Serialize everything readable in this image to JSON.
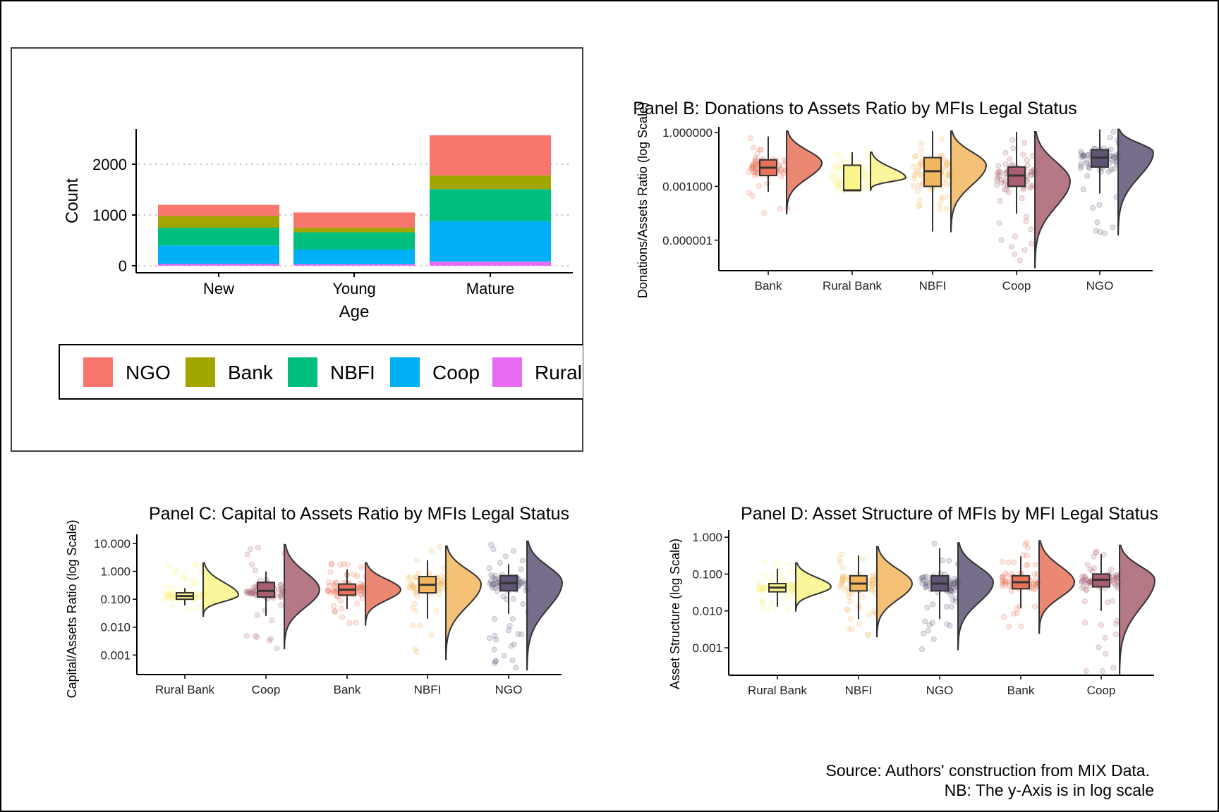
{
  "figure_notes": {
    "source": "Source: Authors' construction from MIX Data.",
    "nb": "NB: The y-Axis is in log scale"
  },
  "chart_data": [
    {
      "id": "A",
      "type": "bar",
      "stacked": true,
      "title": "",
      "xlabel": "Age",
      "ylabel": "Count",
      "categories": [
        "New",
        "Young",
        "Mature"
      ],
      "ylim": [
        0,
        2600
      ],
      "yticks": [
        0,
        1000,
        2000
      ],
      "grid": "horizontal dotted",
      "legend": "bottom",
      "series": [
        {
          "name": "Rural",
          "color": "#E76BF3",
          "values": [
            35,
            30,
            80
          ]
        },
        {
          "name": "Coop",
          "color": "#00B0F6",
          "values": [
            365,
            290,
            800
          ]
        },
        {
          "name": "NBFI",
          "color": "#00BF7D",
          "values": [
            350,
            340,
            630
          ]
        },
        {
          "name": "Bank",
          "color": "#A3A500",
          "values": [
            230,
            90,
            270
          ]
        },
        {
          "name": "NGO",
          "color": "#F8766D",
          "values": [
            220,
            300,
            790
          ]
        }
      ],
      "legend_order": [
        "NGO",
        "Bank",
        "NBFI",
        "Coop",
        "Rural"
      ]
    },
    {
      "id": "B",
      "type": "raincloud",
      "title": "Panel B: Donations to Assets Ratio by MFIs Legal Status",
      "xlabel": "",
      "ylabel": "Donations/Assets Ratio (log Scale)",
      "yscale": "log10",
      "ylim": [
        2e-08,
        1.2
      ],
      "yticks": [
        {
          "value": 1,
          "label": "1.000000"
        },
        {
          "value": 0.001,
          "label": "0.001000"
        },
        {
          "value": 1e-06,
          "label": "0.000001"
        }
      ],
      "groups": [
        {
          "name": "Bank",
          "color": "#E8735A",
          "q1": 0.004,
          "median": 0.011,
          "q3": 0.03,
          "wlo": 0.0005,
          "whi": 0.6,
          "vmin": 3e-05,
          "vmax": 1.2,
          "mode": 0.02,
          "ptlo": 3e-05,
          "pthi": 0.5
        },
        {
          "name": "Rural Bank",
          "color": "#FAF48B",
          "q1": 0.0006,
          "median": 0.0006,
          "q3": 0.015,
          "wlo": 0.0006,
          "whi": 0.08,
          "vmin": 0.0006,
          "vmax": 0.08,
          "mode": 0.003,
          "ptlo": 0.0006,
          "pthi": 0.08
        },
        {
          "name": "NBFI",
          "color": "#F2B65F",
          "q1": 0.001,
          "median": 0.007,
          "q3": 0.04,
          "wlo": 3e-06,
          "whi": 1.2,
          "vmin": 3e-06,
          "vmax": 1.2,
          "mode": 0.015,
          "ptlo": 5e-05,
          "pthi": 1.1
        },
        {
          "name": "Coop",
          "color": "#A86070",
          "q1": 0.001,
          "median": 0.004,
          "q3": 0.012,
          "wlo": 3e-05,
          "whi": 1.1,
          "vmin": 3e-08,
          "vmax": 1.1,
          "mode": 0.002,
          "ptlo": 5e-08,
          "pthi": 1.1
        },
        {
          "name": "NGO",
          "color": "#5F5577",
          "q1": 0.012,
          "median": 0.04,
          "q3": 0.11,
          "wlo": 0.0004,
          "whi": 1.5,
          "vmin": 2e-06,
          "vmax": 1.5,
          "mode": 0.08,
          "ptlo": 2e-06,
          "pthi": 1.4
        }
      ]
    },
    {
      "id": "C",
      "type": "raincloud",
      "title": "Panel C: Capital to Assets Ratio by MFIs Legal Status",
      "xlabel": "",
      "ylabel": "Capital/Assets Ratio (log Scale)",
      "yscale": "log10",
      "ylim": [
        0.0002,
        15
      ],
      "yticks": [
        {
          "value": 10,
          "label": "10.000"
        },
        {
          "value": 1,
          "label": "1.000"
        },
        {
          "value": 0.1,
          "label": "0.100"
        },
        {
          "value": 0.01,
          "label": "0.010"
        },
        {
          "value": 0.001,
          "label": "0.001"
        }
      ],
      "groups": [
        {
          "name": "Rural Bank",
          "color": "#FAF48B",
          "q1": 0.1,
          "median": 0.13,
          "q3": 0.17,
          "wlo": 0.06,
          "whi": 0.25,
          "vmin": 0.025,
          "vmax": 2,
          "mode": 0.14,
          "ptlo": 0.04,
          "pthi": 2
        },
        {
          "name": "Coop",
          "color": "#A86070",
          "q1": 0.12,
          "median": 0.2,
          "q3": 0.4,
          "wlo": 0.025,
          "whi": 1,
          "vmin": 0.0017,
          "vmax": 9,
          "mode": 0.22,
          "ptlo": 0.0017,
          "pthi": 10
        },
        {
          "name": "Bank",
          "color": "#E8735A",
          "q1": 0.14,
          "median": 0.22,
          "q3": 0.35,
          "wlo": 0.045,
          "whi": 1.2,
          "vmin": 0.012,
          "vmax": 2,
          "mode": 0.22,
          "ptlo": 0.012,
          "pthi": 2
        },
        {
          "name": "NBFI",
          "color": "#F2B65F",
          "q1": 0.17,
          "median": 0.33,
          "q3": 0.65,
          "wlo": 0.02,
          "whi": 2.5,
          "vmin": 0.0007,
          "vmax": 8,
          "mode": 0.35,
          "ptlo": 0.0007,
          "pthi": 8
        },
        {
          "name": "NGO",
          "color": "#5F5577",
          "q1": 0.2,
          "median": 0.38,
          "q3": 0.7,
          "wlo": 0.03,
          "whi": 1.8,
          "vmin": 0.0003,
          "vmax": 12,
          "mode": 0.4,
          "ptlo": 0.0003,
          "pthi": 12
        }
      ]
    },
    {
      "id": "D",
      "type": "raincloud",
      "title": "Panel D: Asset Structure of MFIs by MFI Legal Status",
      "xlabel": "",
      "ylabel": "Asset Structure (log Scale)",
      "yscale": "log10",
      "ylim": [
        0.00018,
        1.2
      ],
      "yticks": [
        {
          "value": 1,
          "label": "1.000"
        },
        {
          "value": 0.1,
          "label": "0.100"
        },
        {
          "value": 0.01,
          "label": "0.010"
        },
        {
          "value": 0.001,
          "label": "0.001"
        }
      ],
      "groups": [
        {
          "name": "Rural Bank",
          "color": "#FAF48B",
          "q1": 0.033,
          "median": 0.043,
          "q3": 0.055,
          "wlo": 0.013,
          "whi": 0.14,
          "vmin": 0.01,
          "vmax": 0.2,
          "mode": 0.045,
          "ptlo": 0.01,
          "pthi": 0.22
        },
        {
          "name": "NBFI",
          "color": "#F2B65F",
          "q1": 0.035,
          "median": 0.055,
          "q3": 0.09,
          "wlo": 0.006,
          "whi": 0.32,
          "vmin": 0.002,
          "vmax": 0.55,
          "mode": 0.055,
          "ptlo": 0.002,
          "pthi": 0.35
        },
        {
          "name": "NGO",
          "color": "#5F5577",
          "q1": 0.035,
          "median": 0.055,
          "q3": 0.09,
          "wlo": 0.006,
          "whi": 0.5,
          "vmin": 0.0009,
          "vmax": 0.7,
          "mode": 0.06,
          "ptlo": 0.0009,
          "pthi": 0.7
        },
        {
          "name": "Bank",
          "color": "#E8735A",
          "q1": 0.04,
          "median": 0.06,
          "q3": 0.09,
          "wlo": 0.012,
          "whi": 0.3,
          "vmin": 0.0025,
          "vmax": 0.8,
          "mode": 0.06,
          "ptlo": 0.003,
          "pthi": 0.9
        },
        {
          "name": "Coop",
          "color": "#A86070",
          "q1": 0.045,
          "median": 0.07,
          "q3": 0.1,
          "wlo": 0.01,
          "whi": 0.35,
          "vmin": 0.0002,
          "vmax": 0.6,
          "mode": 0.07,
          "ptlo": 0.0002,
          "pthi": 0.6
        }
      ]
    }
  ]
}
